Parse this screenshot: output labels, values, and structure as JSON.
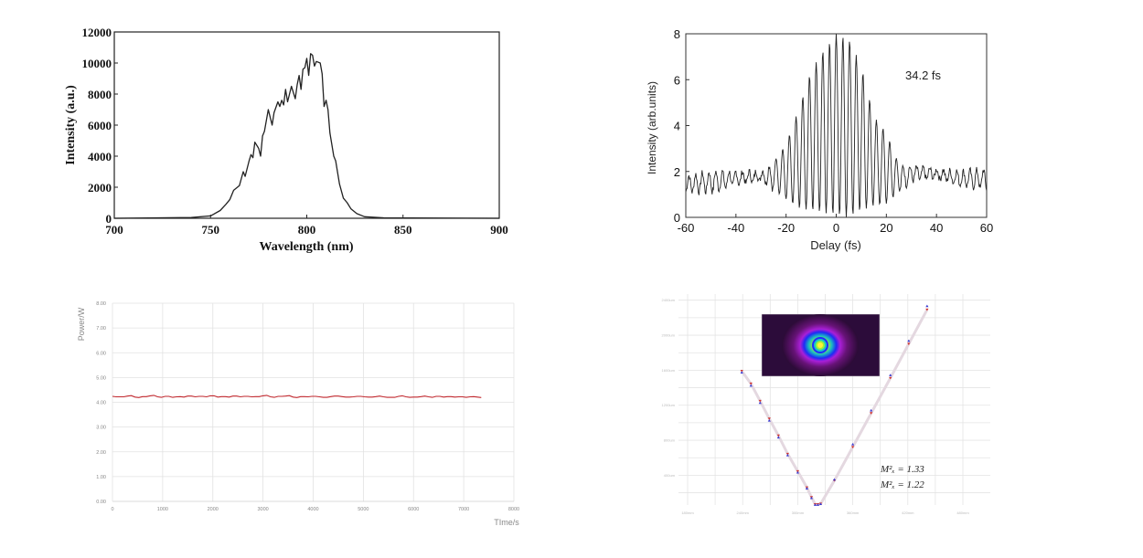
{
  "chart_data": [
    {
      "type": "line",
      "title": "",
      "xlabel": "Wavelength (nm)",
      "ylabel": "Intensity (a.u.)",
      "xlim": [
        700,
        900
      ],
      "ylim": [
        0,
        12000
      ],
      "xticks": [
        "700",
        "750",
        "800",
        "850",
        "900"
      ],
      "yticks": [
        "0",
        "2000",
        "4000",
        "6000",
        "8000",
        "10000",
        "12000"
      ],
      "grid": false,
      "x": [
        700,
        740,
        750,
        755,
        758,
        760,
        762,
        765,
        767,
        768,
        770,
        771,
        772,
        773,
        775,
        776,
        777,
        778,
        780,
        782,
        783,
        785,
        786,
        787,
        788,
        789,
        790,
        791,
        792,
        794,
        795,
        796,
        797,
        798,
        799,
        800,
        801,
        802,
        803,
        804,
        805,
        807,
        808,
        809,
        810,
        811,
        812,
        814,
        815,
        817,
        819,
        821,
        823,
        826,
        830,
        840,
        900
      ],
      "y": [
        0,
        50,
        150,
        500,
        900,
        1200,
        1800,
        2100,
        3000,
        2700,
        3700,
        4100,
        3900,
        4900,
        4500,
        4000,
        5300,
        5600,
        7000,
        6000,
        6800,
        7500,
        7200,
        7600,
        7300,
        8300,
        7500,
        8000,
        8500,
        7700,
        8600,
        9200,
        8300,
        9600,
        9700,
        10300,
        9200,
        10600,
        10500,
        9800,
        10100,
        10000,
        9300,
        7200,
        7600,
        7000,
        5500,
        4000,
        3700,
        2200,
        1300,
        1000,
        600,
        300,
        100,
        30,
        0
      ],
      "color": "#222222"
    },
    {
      "type": "line",
      "title": "",
      "xlabel": "Delay (fs)",
      "ylabel": "Intensity (arb.units)",
      "xlim": [
        -60,
        60
      ],
      "ylim": [
        0,
        8
      ],
      "xticks": [
        "-60",
        "-40",
        "-20",
        "0",
        "20",
        "40",
        "60"
      ],
      "yticks": [
        "0",
        "2",
        "4",
        "6",
        "8"
      ],
      "grid": false,
      "annotation": "34.2 fs",
      "fringe_period_fs": 2.67,
      "envelope_x": [
        -60,
        -50,
        -40,
        -30,
        -25,
        -20,
        -15,
        -10,
        -5,
        0,
        5,
        10,
        15,
        20,
        25,
        30,
        40,
        50,
        60
      ],
      "envelope_upper": [
        1.8,
        2.0,
        2.0,
        2.0,
        2.4,
        3.2,
        4.7,
        6.4,
        7.3,
        8.0,
        7.8,
        6.6,
        4.4,
        3.7,
        2.3,
        2.2,
        2.1,
        2.0,
        2.1
      ],
      "envelope_lower": [
        1.1,
        1.1,
        1.4,
        1.6,
        1.2,
        0.8,
        0.4,
        0.3,
        0.2,
        0.1,
        0.0,
        0.3,
        0.5,
        0.6,
        1.1,
        1.6,
        1.7,
        1.4,
        1.2
      ],
      "color": "#222222"
    },
    {
      "type": "line",
      "title": "",
      "xlabel": "TIme/s",
      "ylabel": "Power/W",
      "xlim": [
        0,
        8000
      ],
      "ylim": [
        0,
        8
      ],
      "xticks": [
        "0",
        "1000",
        "2000",
        "3000",
        "4000",
        "5000",
        "6000",
        "7000",
        "8000"
      ],
      "yticks": [
        "0.00",
        "1.00",
        "2.00",
        "3.00",
        "4.00",
        "5.00",
        "6.00",
        "7.00",
        "8.00"
      ],
      "grid": true,
      "x_step": 150,
      "y": [
        4.24,
        4.22,
        4.25,
        4.21,
        4.23,
        4.26,
        4.22,
        4.24,
        4.2,
        4.23,
        4.25,
        4.22,
        4.24,
        4.26,
        4.21,
        4.23,
        4.25,
        4.22,
        4.24,
        4.23,
        4.26,
        4.22,
        4.24,
        4.25,
        4.21,
        4.23,
        4.22,
        4.24,
        4.2,
        4.23,
        4.25,
        4.21,
        4.22,
        4.24,
        4.21,
        4.23,
        4.22,
        4.2,
        4.24,
        4.22,
        4.21,
        4.23,
        4.22,
        4.24,
        4.21,
        4.23,
        4.22,
        4.2,
        4.23,
        4.19
      ],
      "color": "#c0272d"
    },
    {
      "type": "scatter",
      "title": "",
      "xlabel": "",
      "ylabel": "",
      "xlim": [
        180,
        480
      ],
      "ylim": [
        60,
        2470
      ],
      "xticks": [
        "180mm",
        "240mm",
        "300mm",
        "360mm",
        "420mm",
        "480mm"
      ],
      "xtick_values": [
        180,
        240,
        300,
        360,
        420,
        480
      ],
      "yticks": [
        "400um",
        "800um",
        "1200um",
        "1600um",
        "2000um",
        "2400um"
      ],
      "ytick_values": [
        400,
        800,
        1200,
        1600,
        2000,
        2400
      ],
      "grid": true,
      "annotations": [
        "M²ₓ = 1.33",
        "M²ₓ = 1.22"
      ],
      "inset": "beam-profile-image",
      "series": [
        {
          "name": "x",
          "color": "#d0312d",
          "x": [
            239,
            249,
            259,
            269,
            279,
            289,
            300,
            310,
            315,
            319,
            322,
            325,
            340,
            360,
            380,
            401,
            421,
            441
          ],
          "y": [
            1592,
            1447,
            1248,
            1046,
            853,
            644,
            445,
            260,
            149,
            68,
            68,
            75,
            340,
            722,
            1109,
            1510,
            1901,
            2292
          ]
        },
        {
          "name": "y",
          "color": "#3a3ad0",
          "x": [
            239,
            249,
            259,
            269,
            279,
            289,
            300,
            310,
            315,
            319,
            322,
            325,
            340,
            360,
            380,
            401,
            421,
            441
          ],
          "y": [
            1575,
            1425,
            1228,
            1026,
            833,
            630,
            432,
            250,
            140,
            64,
            64,
            72,
            352,
            755,
            1142,
            1545,
            1937,
            2334
          ]
        }
      ],
      "fit_color": "#e4d8e0"
    }
  ]
}
